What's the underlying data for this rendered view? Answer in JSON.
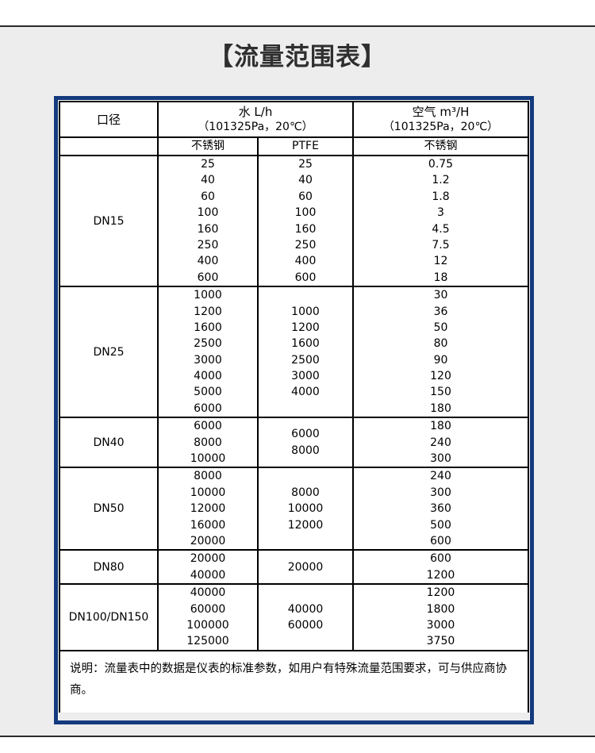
{
  "page": {
    "title": "【流量范围表】"
  },
  "colors": {
    "outer_border_blue": "#133a7d",
    "page_background_gray": "#ededed",
    "divider_dark": "#2b2b2b",
    "table_border": "#000000"
  },
  "table": {
    "header": {
      "diameter": "口径",
      "water_group": "水 L/h",
      "water_condition": "（101325Pa，20℃）",
      "air_group": "空气 m³/H",
      "air_condition": "（101325Pa，20℃）",
      "sub_water_ss": "不锈钢",
      "sub_water_ptfe": "PTFE",
      "sub_air_ss": "不锈钢"
    },
    "rows": [
      {
        "diameter": "DN15",
        "water_ss": [
          "25",
          "40",
          "60",
          "100",
          "160",
          "250",
          "400",
          "600"
        ],
        "water_ptfe": [
          "25",
          "40",
          "60",
          "100",
          "160",
          "250",
          "400",
          "600"
        ],
        "air_ss": [
          "0.75",
          "1.2",
          "1.8",
          "3",
          "4.5",
          "7.5",
          "12",
          "18"
        ]
      },
      {
        "diameter": "DN25",
        "water_ss": [
          "1000",
          "1200",
          "1600",
          "2500",
          "3000",
          "4000",
          "5000",
          "6000"
        ],
        "water_ptfe": [
          "1000",
          "1200",
          "1600",
          "2500",
          "3000",
          "4000"
        ],
        "air_ss": [
          "30",
          "36",
          "50",
          "80",
          "90",
          "120",
          "150",
          "180"
        ]
      },
      {
        "diameter": "DN40",
        "water_ss": [
          "6000",
          "8000",
          "10000"
        ],
        "water_ptfe": [
          "6000",
          "8000"
        ],
        "air_ss": [
          "180",
          "240",
          "300"
        ]
      },
      {
        "diameter": "DN50",
        "water_ss": [
          "8000",
          "10000",
          "12000",
          "16000",
          "20000"
        ],
        "water_ptfe": [
          "8000",
          "10000",
          "12000"
        ],
        "air_ss": [
          "240",
          "300",
          "360",
          "500",
          "600"
        ]
      },
      {
        "diameter": "DN80",
        "water_ss": [
          "20000",
          "40000"
        ],
        "water_ptfe": [
          "20000"
        ],
        "air_ss": [
          "600",
          "1200"
        ]
      },
      {
        "diameter": "DN100/DN150",
        "water_ss": [
          "40000",
          "60000",
          "100000",
          "125000"
        ],
        "water_ptfe": [
          "40000",
          "60000"
        ],
        "air_ss": [
          "1200",
          "1800",
          "3000",
          "3750"
        ]
      }
    ],
    "note": "说明：流量表中的数据是仪表的标准参数，如用户有特殊流量范围要求，可与供应商协商。"
  }
}
